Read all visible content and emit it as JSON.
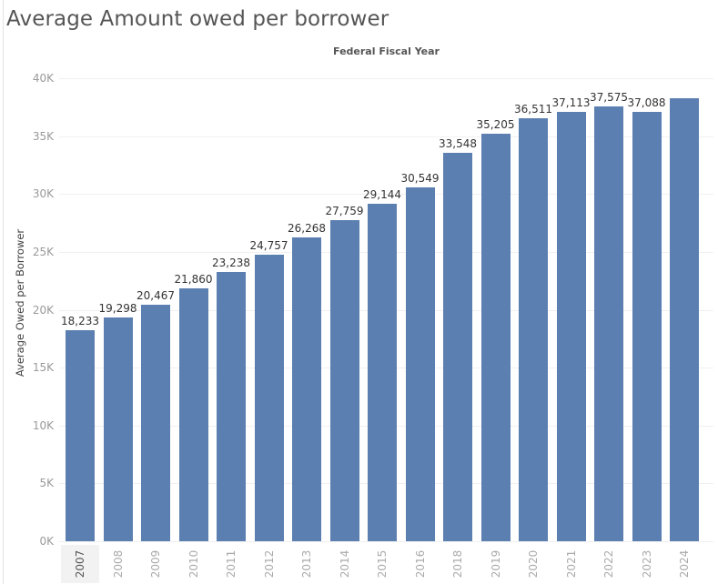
{
  "title": "Average Amount owed per borrower",
  "colors": {
    "bar": "#5b7fb0",
    "gridline": "#f0f0f0",
    "title": "#555555"
  },
  "selected_category": "2007",
  "chart_data": {
    "type": "bar",
    "title": "Average Amount owed per borrower",
    "column_header": "Federal Fiscal Year",
    "xlabel": "Federal Fiscal Year",
    "ylabel": "Average Owed per Borrower",
    "ylim": [
      0,
      40000
    ],
    "yticks": [
      "0K",
      "5K",
      "10K",
      "15K",
      "20K",
      "25K",
      "30K",
      "35K",
      "40K"
    ],
    "grid": true,
    "legend": null,
    "categories": [
      "2007",
      "2008",
      "2009",
      "2010",
      "2011",
      "2012",
      "2013",
      "2014",
      "2015",
      "2016",
      "2018",
      "2019",
      "2020",
      "2021",
      "2022",
      "2023",
      "2024"
    ],
    "values": [
      18233,
      19298,
      20467,
      21860,
      23238,
      24757,
      26268,
      27759,
      29144,
      30549,
      33548,
      35205,
      36511,
      37113,
      37575,
      37088,
      38300
    ],
    "labels": [
      "18,233",
      "19,298",
      "20,467",
      "21,860",
      "23,238",
      "24,757",
      "26,268",
      "27,759",
      "29,144",
      "30,549",
      "33,548",
      "35,205",
      "36,511",
      "37,113",
      "37,575",
      "37,088",
      ""
    ],
    "notes": "2024 bar has no data label; value estimated from gridlines (~38.3K)"
  }
}
